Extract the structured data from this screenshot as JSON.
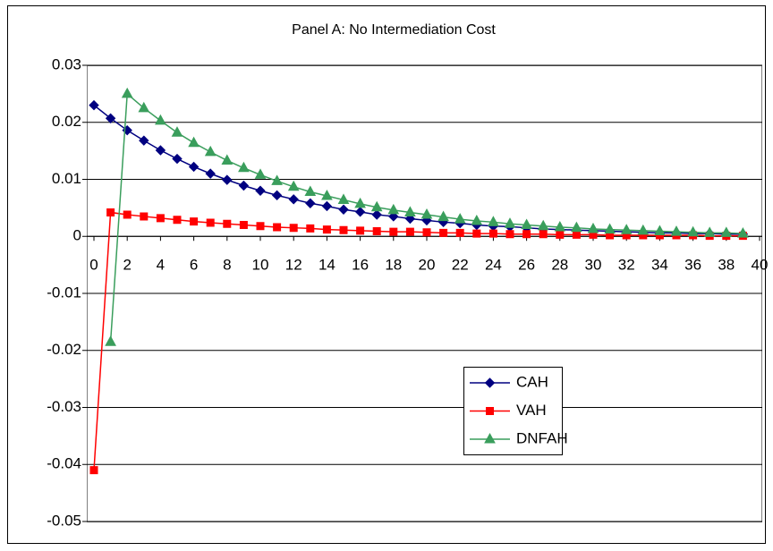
{
  "chart_data": {
    "type": "line",
    "title": "Panel A: No Intermediation Cost",
    "x": [
      0,
      1,
      2,
      3,
      4,
      5,
      6,
      7,
      8,
      9,
      10,
      11,
      12,
      13,
      14,
      15,
      16,
      17,
      18,
      19,
      20,
      21,
      22,
      23,
      24,
      25,
      26,
      27,
      28,
      29,
      30,
      31,
      32,
      33,
      34,
      35,
      36,
      37,
      38,
      39
    ],
    "xlim": [
      0,
      40
    ],
    "xticks": [
      0,
      2,
      4,
      6,
      8,
      10,
      12,
      14,
      16,
      18,
      20,
      22,
      24,
      26,
      28,
      30,
      32,
      34,
      36,
      38,
      40
    ],
    "ylim": [
      -0.05,
      0.03
    ],
    "yticks": [
      -0.05,
      -0.04,
      -0.03,
      -0.02,
      -0.01,
      0,
      0.01,
      0.02,
      0.03
    ],
    "grid": true,
    "legend": "lower-right",
    "series": [
      {
        "name": "CAH",
        "color": "#000080",
        "marker": "diamond",
        "values": [
          0.023,
          0.0207,
          0.0186,
          0.0168,
          0.0151,
          0.0136,
          0.0122,
          0.011,
          0.0099,
          0.0089,
          0.008,
          0.0072,
          0.0065,
          0.0058,
          0.0053,
          0.0047,
          0.0043,
          0.0038,
          0.0035,
          0.0031,
          0.0028,
          0.0025,
          0.0023,
          0.002,
          0.0018,
          0.0017,
          0.0015,
          0.0013,
          0.0012,
          0.0011,
          0.001,
          0.0009,
          0.0008,
          0.0007,
          0.0006,
          0.0006,
          0.0005,
          0.0005,
          0.0004,
          0.0004
        ]
      },
      {
        "name": "VAH",
        "color": "#ff0000",
        "marker": "square",
        "values": [
          -0.041,
          0.0042,
          0.0038,
          0.0035,
          0.0032,
          0.0029,
          0.0026,
          0.0024,
          0.0022,
          0.002,
          0.0018,
          0.0016,
          0.0015,
          0.0014,
          0.0012,
          0.0011,
          0.001,
          0.0009,
          0.0008,
          0.0008,
          0.0007,
          0.0006,
          0.0006,
          0.0005,
          0.0005,
          0.0004,
          0.0004,
          0.0004,
          0.0003,
          0.0003,
          0.0003,
          0.0002,
          0.0002,
          0.0002,
          0.0002,
          0.0002,
          0.0002,
          0.0001,
          0.0001,
          0.0001
        ]
      },
      {
        "name": "DNFAH",
        "color": "#3a9e5c",
        "marker": "triangle",
        "values": [
          null,
          -0.0185,
          0.025,
          0.0225,
          0.0203,
          0.0182,
          0.0164,
          0.0148,
          0.0133,
          0.012,
          0.0108,
          0.0097,
          0.0087,
          0.0078,
          0.0071,
          0.0064,
          0.0057,
          0.0051,
          0.0046,
          0.0042,
          0.0038,
          0.0034,
          0.003,
          0.0027,
          0.0025,
          0.0022,
          0.002,
          0.0018,
          0.0016,
          0.0015,
          0.0013,
          0.0012,
          0.0011,
          0.001,
          0.0009,
          0.0008,
          0.0007,
          0.0006,
          0.0006,
          0.0005
        ]
      }
    ]
  }
}
